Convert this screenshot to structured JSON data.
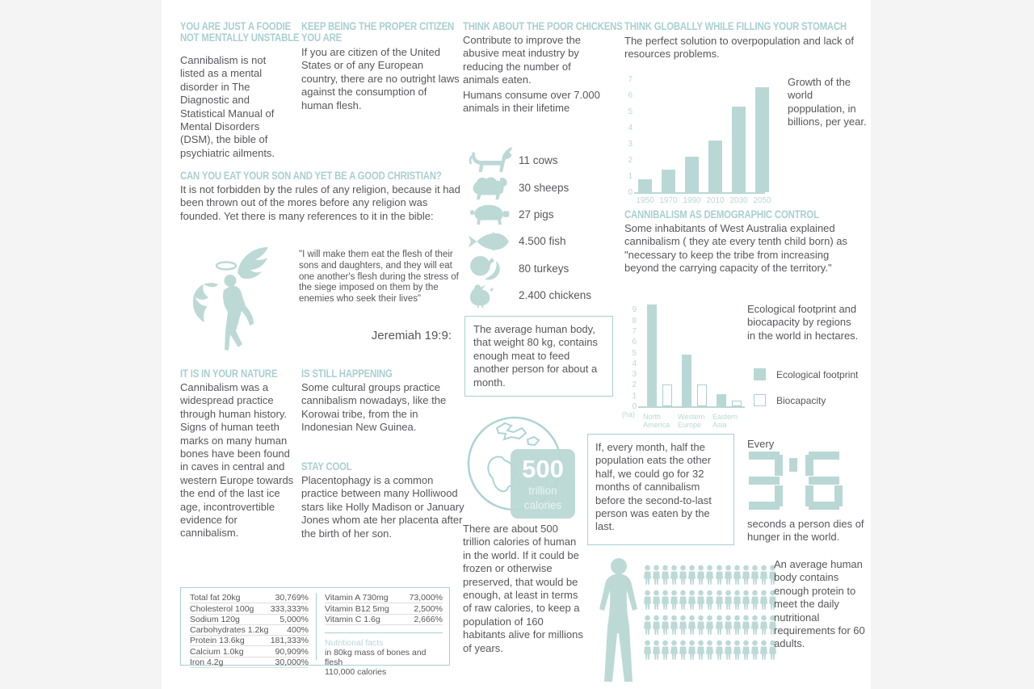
{
  "palette": {
    "accent_heading": "#a9cfd1",
    "icon_teal": "#bcd9d6",
    "bar_teal": "#b9d8d5",
    "body_text": "#56575b",
    "paper": "#ffffff",
    "outer_bg": "#f4f4f4"
  },
  "sections": {
    "foodie": {
      "title": "YOU ARE JUST A FOODIE NOT MENTALLY UNSTABLE",
      "body": "Cannibalism is not listed as a mental disorder in The Diagnostic and Statistical Manual of Mental Disorders (DSM), the bible of psychiatric ailments."
    },
    "citizen": {
      "title": "KEEP BEING THE PROPER CITIZEN YOU ARE",
      "body": "If you are citizen of the United States or of any European country, there are no outright laws against the consumption of human flesh."
    },
    "christian": {
      "title": "CAN YOU EAT YOUR SON AND YET BE A GOOD CHRISTIAN?",
      "body": "It is not forbidden by the rules of any religion, because it had been thrown out of the mores before any religion was founded. Yet there is many references to it in the bible:",
      "quote": "\"I will make them eat the flesh of their sons and daughters, and they will eat one another's flesh during the stress of the siege imposed on them by the enemies who seek their lives\"",
      "quote_source": "Jeremiah 19:9:"
    },
    "nature": {
      "title": "IT IS IN YOUR NATURE",
      "body": "Cannibalism was a widespread practice through human history. Signs of human teeth marks on many human bones have been found in caves in central and western Europe towards the end of the last ice age, incontrovertible evidence for cannibalism."
    },
    "happening": {
      "title": "IS STILL HAPPENING",
      "body": "Some cultural groups practice cannibalism nowadays, like the Korowai tribe, from the in Indonesian New Guinea."
    },
    "cool": {
      "title": "STAY COOL",
      "body": "Placentophagy is a common practice between many Holliwood stars like Holly Madison or January Jones whom ate her placenta after the birth of her son."
    },
    "chickens": {
      "title": "THINK ABOUT THE POOR CHICKENS",
      "body": "Contribute to improve the abusive meat industry by reducing the number of animals eaten.",
      "body2": "Humans consume over 7.000 animals in their lifetime",
      "animals": [
        {
          "icon": "cow-icon",
          "label": "11 cows"
        },
        {
          "icon": "sheep-icon",
          "label": "30 sheeps"
        },
        {
          "icon": "pig-icon",
          "label": "27 pigs"
        },
        {
          "icon": "fish-icon",
          "label": "4.500 fish"
        },
        {
          "icon": "turkey-icon",
          "label": "80 turkeys"
        },
        {
          "icon": "chicken-icon",
          "label": "2.400 chickens"
        }
      ]
    },
    "average_body_box": "The average human body, that weight 80 kg, contains enough meat to feed another person for about a month.",
    "globe": {
      "value": "500",
      "unit_line1": "trillion",
      "unit_line2": "calories"
    },
    "calories_text": "There are about 500 trillion calories of human in the world. If it could be frozen or otherwise preserved, that would be enough, at least in terms of raw calories, to keep a population of 160 habitants alive for millions of years.",
    "globally": {
      "title": "THINK GLOBALLY WHILE FILLING YOUR STOMACH",
      "body": "The perfect solution to overpopulation and lack of resources problems."
    },
    "demographic": {
      "title": "CANNIBALISM AS DEMOGRAPHIC CONTROL",
      "body": "Some inhabitants of West Australia explained cannibalism ( they ate every tenth child born) as \"necessary to keep the tribe from increasing beyond the carrying capacity of the territory.\""
    },
    "half_box": "If, every month, half the population eats the other half, we could go for 32 months of cannibalism before the second-to-last person was eaten by the last.",
    "hunger": {
      "prefix": "Every",
      "value": "3'6",
      "suffix": "seconds a person dies of hunger in the world."
    },
    "protein": {
      "text": "An average human body contains enough protein to meet the daily nutritional requirements for 60 adults.",
      "people_count": 60
    }
  },
  "chart_data": [
    {
      "type": "bar",
      "title": "Growth of the world poppulation, in billions, per year.",
      "categories": [
        "1950",
        "1970",
        "1990",
        "2010",
        "2030",
        "2050"
      ],
      "values": [
        0.8,
        1.4,
        2.2,
        3.2,
        5.3,
        6.5
      ],
      "ylim": [
        0,
        7
      ],
      "yticks": [
        0,
        1,
        2,
        3,
        4,
        5,
        6,
        7
      ],
      "grid": false,
      "bar_color": "#b9d8d5"
    },
    {
      "type": "bar",
      "title": "Ecological footprint and biocapacity by regions in the world in hectares.",
      "unit": "(ha)",
      "categories": [
        "North America",
        "Western Europe",
        "Eastern Asia"
      ],
      "series": [
        {
          "name": "Ecological footprint",
          "style": "filled",
          "values": [
            9.5,
            4.8,
            1.1
          ]
        },
        {
          "name": "Biocapacity",
          "style": "outline",
          "values": [
            2.0,
            2.0,
            0.5
          ]
        }
      ],
      "ylim": [
        0,
        9
      ],
      "yticks": [
        0,
        1,
        2,
        3,
        4,
        5,
        6,
        7,
        8,
        9
      ],
      "grid": false,
      "legend_position": "right"
    }
  ],
  "nutrition_table": {
    "rows_left": [
      [
        "Total fat 20kg",
        "30,769%"
      ],
      [
        "Cholesterol 100g",
        "333,333%"
      ],
      [
        "Sodium 120g",
        "5,000%"
      ],
      [
        "Carbohydrates 1.2kg",
        "400%"
      ],
      [
        "Protein 13.6kg",
        "181,333%"
      ],
      [
        "Calcium 1.0kg",
        "90,909%"
      ],
      [
        "Iron 4.2g",
        "30,000%"
      ]
    ],
    "rows_right": [
      [
        "Vitamin A 730mg",
        "73,000%"
      ],
      [
        "Vitamin B12 5mg",
        "2,500%"
      ],
      [
        "Vitamin C 1.6g",
        "2,666%"
      ]
    ],
    "footer_title": "Nutritional facts",
    "footer_line1": "in 80kg mass of bones and flesh",
    "footer_line2": "110,000 calories"
  }
}
